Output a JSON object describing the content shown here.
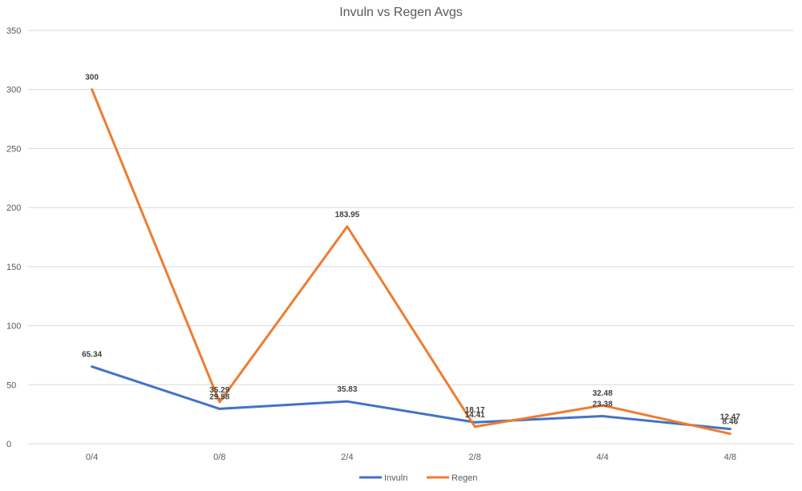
{
  "chart_data": {
    "type": "line",
    "title": "Invuln vs Regen Avgs",
    "xlabel": "",
    "ylabel": "",
    "categories": [
      "0/4",
      "0/8",
      "2/4",
      "2/8",
      "4/4",
      "4/8"
    ],
    "ylim": [
      0,
      350
    ],
    "yticks": [
      0,
      50,
      100,
      150,
      200,
      250,
      300,
      350
    ],
    "grid": true,
    "legend": "bottom",
    "series": [
      {
        "name": "Invuln",
        "color": "#4472c4",
        "values": [
          65.34,
          29.58,
          35.83,
          18.17,
          23.38,
          12.47
        ],
        "labels": [
          "65.34",
          "29.58",
          "35.83",
          "18.17",
          "23.38",
          "12.47"
        ]
      },
      {
        "name": "Regen",
        "color": "#ed7d31",
        "values": [
          300,
          35.29,
          183.95,
          14.41,
          32.48,
          8.46
        ],
        "labels": [
          "300",
          "35.29",
          "183.95",
          "14.41",
          "32.48",
          "8.46"
        ]
      }
    ]
  }
}
